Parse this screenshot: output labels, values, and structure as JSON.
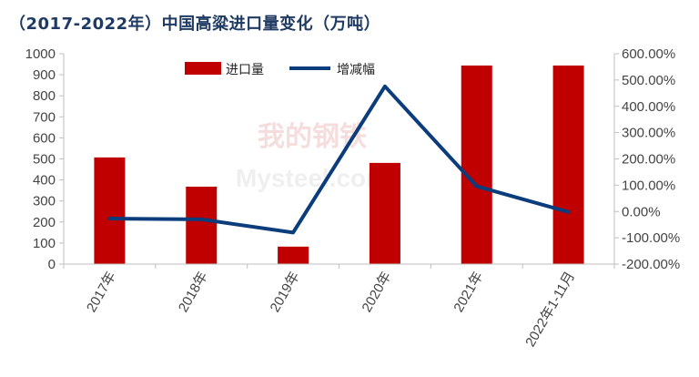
{
  "title": "（2017-2022年）中国高粱进口量变化（万吨）",
  "watermark": {
    "top": "我的钢铁",
    "bottom": "Mysteel.com"
  },
  "chart_data": {
    "type": "bar",
    "categories": [
      "2017年",
      "2018年",
      "2019年",
      "2020年",
      "2021年",
      "2022年1-11月"
    ],
    "series": [
      {
        "name": "进口量",
        "type": "bar",
        "axis": "left",
        "color": "#c00000",
        "values": [
          507,
          368,
          83,
          481,
          944,
          944
        ]
      },
      {
        "name": "增减幅",
        "type": "line",
        "axis": "right",
        "color": "#0b3c7c",
        "values": [
          -27,
          -30,
          -80,
          476,
          96,
          -2
        ]
      }
    ],
    "left_axis": {
      "ticks": [
        "0",
        "100",
        "200",
        "300",
        "400",
        "500",
        "600",
        "700",
        "800",
        "900",
        "1000"
      ],
      "ylim": [
        0,
        1000
      ]
    },
    "right_axis": {
      "ticks": [
        "-200.00%",
        "-100.00%",
        "0.00%",
        "100.00%",
        "200.00%",
        "300.00%",
        "400.00%",
        "500.00%",
        "600.00%"
      ],
      "ylim": [
        -200,
        600
      ]
    },
    "legend_position": "top-center",
    "grid": false
  }
}
